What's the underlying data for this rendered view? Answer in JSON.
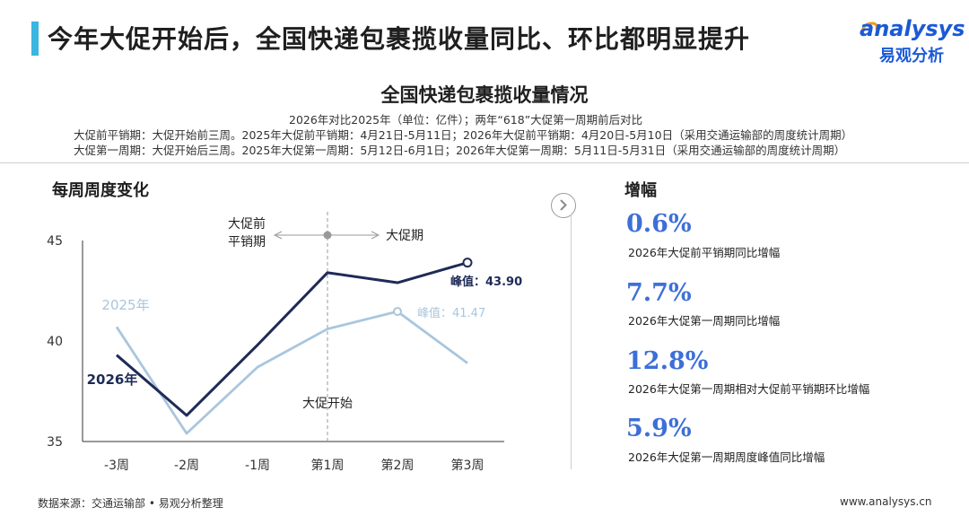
{
  "headline": "今年大促开始后，全国快递包裹揽收量同比、环比都明显提升",
  "brand": {
    "logo_word": "analysys",
    "logo_cn": "易观分析",
    "color": "#1a5ad7"
  },
  "chart_title": "全国快递包裹揽收量情况",
  "notes": [
    "2026年对比2025年（单位：亿件）；两年“618”大促第一周期前后对比",
    "大促前平销期：大促开始前三周。2025年大促前平销期：4月21日-5月11日；2026年大促前平销期：4月20日-5月10日（采用交通运输部的周度统计周期）",
    "大促第一周期：大促开始后三周。2025年大促第一周期：5月12日-6月1日；2026年大促第一周期：5月11日-5月31日（采用交通运输部的周度统计周期）"
  ],
  "left_section_title": "每周周度变化",
  "right_section_title": "增幅",
  "chart_data": {
    "type": "line",
    "categories": [
      "-3周",
      "-2周",
      "-1周",
      "第1周",
      "第2周",
      "第3周"
    ],
    "series": [
      {
        "name": "2025年",
        "values": [
          40.7,
          35.4,
          38.7,
          40.6,
          41.47,
          38.9
        ],
        "color": "#a9c6dd"
      },
      {
        "name": "2026年",
        "values": [
          39.3,
          36.3,
          39.8,
          43.4,
          42.9,
          43.9
        ],
        "color": "#1e2b57"
      }
    ],
    "ylim": [
      35,
      45
    ],
    "yticks": [
      "35",
      "40",
      "45"
    ],
    "grid": false,
    "annotations": {
      "pre_period": "大促前",
      "pre_period_line2": "平销期",
      "promo_period": "大促期",
      "promo_start": "大促开始",
      "peak_2026": "峰值：43.90",
      "peak_2025": "峰值：41.47"
    }
  },
  "stats": [
    {
      "value": "0.6%",
      "label": "2026年大促前平销期同比增幅"
    },
    {
      "value": "7.7%",
      "label": "2026年大促第一周期同比增幅"
    },
    {
      "value": "12.8%",
      "label": "2026年大促第一周期相对大促前平销期环比增幅"
    },
    {
      "value": "5.9%",
      "label": "2026年大促第一周期周度峰值同比增幅"
    }
  ],
  "footer": {
    "source": "数据来源：交通运输部 • 易观分析整理",
    "website": "www.analysys.cn"
  },
  "colors": {
    "accent": "#3ab6e0",
    "stat_blue": "#3d6fd8"
  }
}
